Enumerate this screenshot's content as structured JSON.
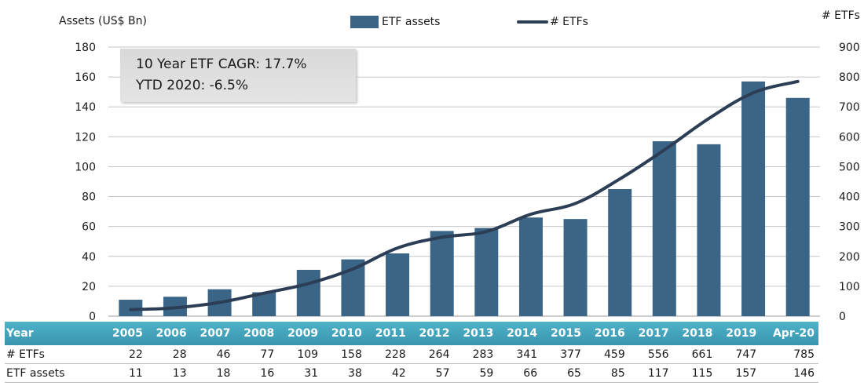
{
  "chart_data": {
    "type": "bar+line",
    "categories": [
      "2005",
      "2006",
      "2007",
      "2008",
      "2009",
      "2010",
      "2011",
      "2012",
      "2013",
      "2014",
      "2015",
      "2016",
      "2017",
      "2018",
      "2019",
      "Apr-20"
    ],
    "series": [
      {
        "name": "ETF assets",
        "type": "bar",
        "axis": "left",
        "values": [
          11,
          13,
          18,
          16,
          31,
          38,
          42,
          57,
          59,
          66,
          65,
          85,
          117,
          115,
          157,
          146
        ]
      },
      {
        "name": "# ETFs",
        "type": "line",
        "axis": "right",
        "values": [
          22,
          28,
          46,
          77,
          109,
          158,
          228,
          264,
          283,
          341,
          377,
          459,
          556,
          661,
          747,
          785
        ]
      }
    ],
    "ylabel_left": "Assets (US$ Bn)",
    "ylabel_right": "# ETFs",
    "ylim_left": [
      0,
      180
    ],
    "ylim_right": [
      0,
      900
    ],
    "yticks_left": [
      0,
      20,
      40,
      60,
      80,
      100,
      120,
      140,
      160,
      180
    ],
    "yticks_right": [
      0,
      100,
      200,
      300,
      400,
      500,
      600,
      700,
      800,
      900
    ],
    "grid": true,
    "legend_position": "top",
    "annotations": [
      "10 Year ETF CAGR: 17.7%",
      "YTD 2020: -6.5%"
    ],
    "colors": {
      "bar": "#3b6587",
      "line": "#2b3e55",
      "header": "#4eb3c9"
    }
  },
  "table": {
    "header_label": "Year",
    "rows": [
      {
        "label": "# ETFs",
        "key": "etfs"
      },
      {
        "label": "ETF assets",
        "key": "assets"
      }
    ]
  }
}
